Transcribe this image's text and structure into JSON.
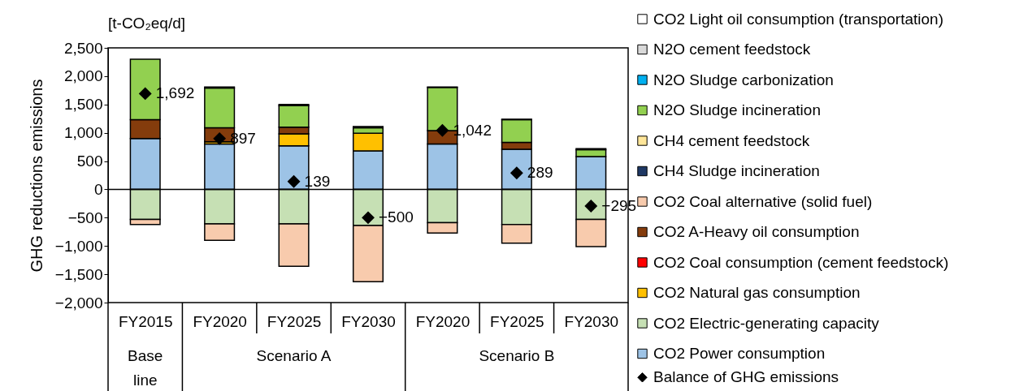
{
  "chart_data": {
    "type": "bar",
    "stacked": true,
    "title": "[t-CO₂eq/d]",
    "ylabel": "GHG reductions emissions",
    "categories": [
      "FY2015",
      "FY2020",
      "FY2025",
      "FY2030",
      "FY2020",
      "FY2025",
      "FY2030"
    ],
    "annotations": [
      "Base line",
      "Scenario A",
      "Scenario B"
    ],
    "ylim": [
      -2000,
      2500
    ],
    "yticks": [
      {
        "value": -2000,
        "label": "−2,000"
      },
      {
        "value": -1500,
        "label": "−1,500"
      },
      {
        "value": -1000,
        "label": "−1,000"
      },
      {
        "value": -500,
        "label": "−500"
      },
      0,
      500,
      {
        "value": 1000,
        "label": "1,000"
      },
      {
        "value": 1500,
        "label": "1,500"
      },
      {
        "value": 2000,
        "label": "2,000"
      },
      {
        "value": 2500,
        "label": "2,500"
      }
    ],
    "legend": "right",
    "ref_lines": [
      {
        "axis": "y",
        "value": 0,
        "color": "#000000"
      }
    ],
    "series": [
      {
        "name": "CO2 Power consumption",
        "color": "#9dc3e6",
        "values": [
          900,
          800,
          770,
          680,
          800,
          710,
          580
        ]
      },
      {
        "name": "CO2 Electric-generating capacity",
        "color": "#c6e0b4",
        "values": [
          -530,
          -610,
          -610,
          -640,
          -590,
          -620,
          -530
        ]
      },
      {
        "name": "CO2 Natural gas consumption",
        "color": "#ffc000",
        "values": [
          null,
          40,
          210,
          310,
          null,
          null,
          null
        ]
      },
      {
        "name": "CO2 Coal consumption (cement feedstock)",
        "color": "#ff0000",
        "values": [
          null,
          null,
          null,
          null,
          null,
          null,
          null
        ]
      },
      {
        "name": "CO2 A-Heavy oil consumption",
        "color": "#843c0c",
        "values": [
          330,
          250,
          120,
          null,
          240,
          120,
          null
        ]
      },
      {
        "name": "CO2 Coal alternative (solid fuel)",
        "color": "#f8cbad",
        "values": [
          -90,
          -290,
          -750,
          -990,
          -180,
          -330,
          -480
        ]
      },
      {
        "name": "CH4 Sludge incineration",
        "color": "#1f3864",
        "values": [
          null,
          null,
          null,
          null,
          null,
          null,
          null
        ]
      },
      {
        "name": "CH4 cement feedstock",
        "color": "#ffe699",
        "values": [
          null,
          null,
          null,
          null,
          null,
          null,
          null
        ]
      },
      {
        "name": "N2O Sludge incineration",
        "color": "#92d050",
        "values": [
          1070,
          700,
          380,
          100,
          760,
          400,
          120
        ]
      },
      {
        "name": "N2O Sludge carbonization",
        "color": "#00b0f0",
        "values": [
          null,
          20,
          20,
          20,
          10,
          10,
          20
        ]
      },
      {
        "name": "N2O cement feedstock",
        "color": "#d9d9d9",
        "values": [
          null,
          null,
          null,
          null,
          null,
          null,
          null
        ]
      },
      {
        "name": "CO2 Light oil consumption (transportation)",
        "color": "#ffffff",
        "values": [
          null,
          null,
          null,
          null,
          null,
          null,
          null
        ]
      },
      {
        "name": "Balance of GHG emissions",
        "type": "scatter",
        "marker": "diamond",
        "color": "#000000",
        "values": [
          1692,
          897,
          139,
          -500,
          1042,
          289,
          -295
        ],
        "value_labels": [
          "1,692",
          "897",
          "139",
          "−500",
          "1,042",
          "289",
          "−295"
        ]
      }
    ]
  }
}
